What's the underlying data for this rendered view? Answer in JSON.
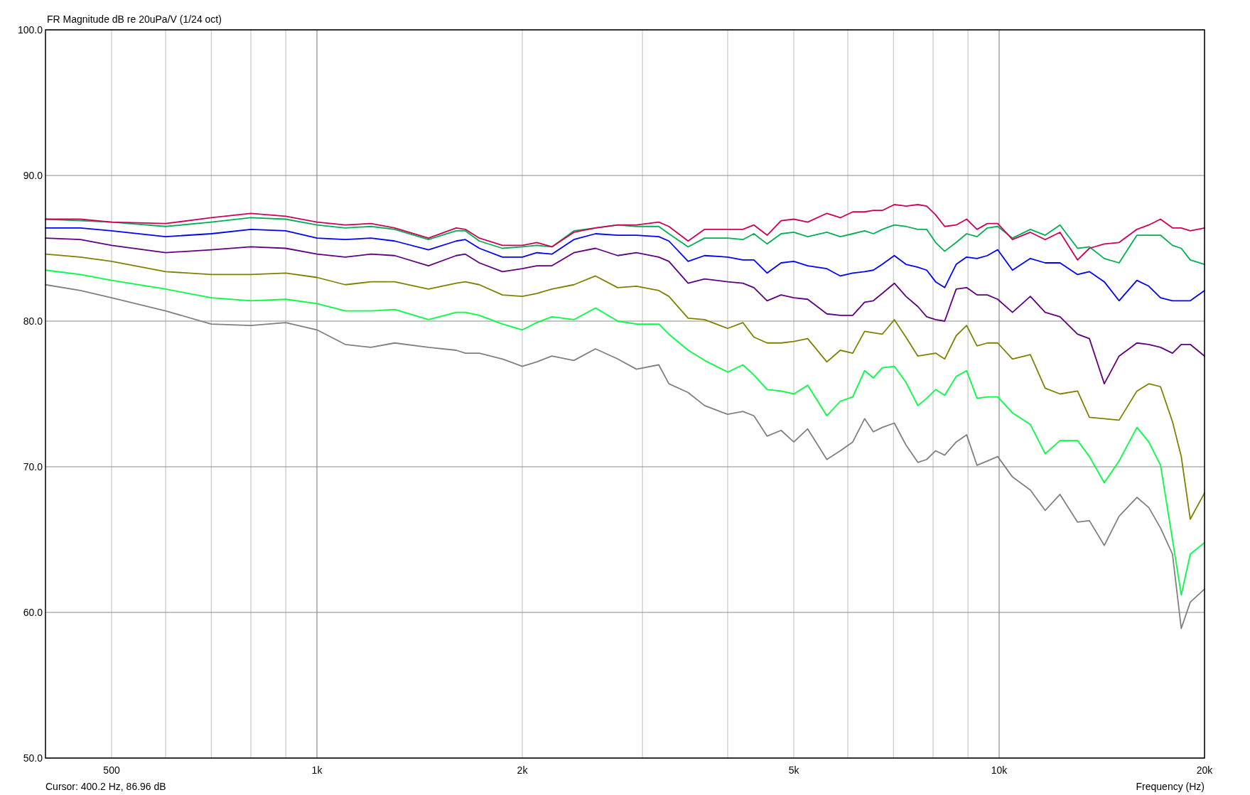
{
  "chart_data": {
    "type": "line",
    "title": "FR Magnitude dB re 20uPa/V (1/24 oct)",
    "xlabel": "Frequency (Hz)",
    "annotations": [
      "Cursor: 400.2 Hz, 86.96 dB"
    ],
    "log": "x",
    "grid": true,
    "marker": "none",
    "line_style": "solid",
    "xlim": [
      400,
      20000
    ],
    "xticks": [
      {
        "value": 500,
        "label": "500"
      },
      {
        "value": 600,
        "label": null
      },
      {
        "value": 700,
        "label": null
      },
      {
        "value": 800,
        "label": null
      },
      {
        "value": 900,
        "label": null
      },
      {
        "value": 1000,
        "label": "1k"
      },
      {
        "value": 2000,
        "label": "2k"
      },
      {
        "value": 3000,
        "label": null
      },
      {
        "value": 4000,
        "label": null
      },
      {
        "value": 5000,
        "label": "5k"
      },
      {
        "value": 6000,
        "label": null
      },
      {
        "value": 7000,
        "label": null
      },
      {
        "value": 8000,
        "label": null
      },
      {
        "value": 9000,
        "label": null
      },
      {
        "value": 10000,
        "label": "10k"
      },
      {
        "value": 20000,
        "label": "20k"
      }
    ],
    "ylim": [
      50,
      100
    ],
    "yticks": [
      {
        "value": 50,
        "label": "50.0"
      },
      {
        "value": 60,
        "label": "60.0"
      },
      {
        "value": 70,
        "label": "70.0"
      },
      {
        "value": 80,
        "label": "80.0"
      },
      {
        "value": 90,
        "label": "90.0"
      },
      {
        "value": 100,
        "label": "100.0"
      }
    ],
    "x": [
      400,
      450,
      500,
      600,
      700,
      800,
      900,
      1000,
      1100,
      1200,
      1300,
      1457,
      1600,
      1650,
      1730,
      1870,
      2000,
      2100,
      2210,
      2380,
      2560,
      2760,
      2940,
      3170,
      3280,
      3500,
      3700,
      4000,
      4210,
      4370,
      4570,
      4790,
      5000,
      5240,
      5590,
      5850,
      6100,
      6350,
      6540,
      6740,
      7020,
      7300,
      7600,
      7830,
      8070,
      8320,
      8650,
      8960,
      9280,
      9610,
      9950,
      10460,
      11110,
      11680,
      12280,
      13030,
      13560,
      14260,
      14990,
      15920,
      16570,
      17240,
      17950,
      18490,
      19060,
      20000
    ],
    "series": [
      {
        "color": "#808080",
        "values": [
          82.5,
          82.1,
          81.6,
          80.7,
          79.8,
          79.7,
          79.9,
          79.4,
          78.4,
          78.2,
          78.5,
          78.2,
          78.0,
          77.8,
          77.8,
          77.4,
          76.9,
          77.2,
          77.6,
          77.3,
          78.1,
          77.4,
          76.7,
          77.0,
          75.7,
          75.1,
          74.2,
          73.6,
          73.8,
          73.5,
          72.1,
          72.5,
          71.7,
          72.6,
          70.5,
          71.1,
          71.7,
          73.3,
          72.4,
          72.7,
          73.0,
          71.5,
          70.3,
          70.5,
          71.1,
          70.8,
          71.7,
          72.2,
          70.1,
          70.4,
          70.7,
          69.3,
          68.4,
          67.0,
          68.1,
          66.2,
          66.3,
          64.6,
          66.6,
          67.9,
          67.2,
          65.8,
          64.0,
          58.9,
          60.7,
          61.6
        ]
      },
      {
        "color": "#00ff40",
        "values": [
          83.5,
          83.2,
          82.8,
          82.2,
          81.6,
          81.4,
          81.5,
          81.2,
          80.7,
          80.7,
          80.8,
          80.1,
          80.6,
          80.6,
          80.4,
          79.8,
          79.4,
          79.9,
          80.3,
          80.1,
          80.9,
          80.0,
          79.8,
          79.8,
          79.1,
          78.0,
          77.3,
          76.5,
          77.0,
          76.3,
          75.3,
          75.2,
          75.0,
          75.6,
          73.5,
          74.5,
          74.8,
          76.6,
          76.1,
          76.8,
          76.9,
          75.8,
          74.2,
          74.7,
          75.3,
          74.9,
          76.2,
          76.6,
          74.7,
          74.8,
          74.8,
          73.7,
          72.9,
          70.9,
          71.8,
          71.8,
          70.7,
          68.9,
          70.4,
          72.7,
          71.7,
          70.1,
          65.0,
          61.2,
          64.0,
          64.8
        ]
      },
      {
        "color": "#808000",
        "values": [
          84.6,
          84.4,
          84.1,
          83.4,
          83.2,
          83.2,
          83.3,
          83.0,
          82.5,
          82.7,
          82.7,
          82.2,
          82.6,
          82.7,
          82.5,
          81.8,
          81.7,
          81.9,
          82.2,
          82.5,
          83.1,
          82.3,
          82.4,
          82.1,
          81.7,
          80.2,
          80.1,
          79.5,
          79.9,
          78.9,
          78.5,
          78.5,
          78.6,
          78.8,
          77.2,
          78.0,
          77.8,
          79.3,
          79.2,
          79.1,
          80.1,
          78.9,
          77.6,
          77.7,
          77.8,
          77.4,
          79.0,
          79.7,
          78.3,
          78.5,
          78.5,
          77.4,
          77.7,
          75.4,
          75.0,
          75.2,
          73.4,
          73.3,
          73.2,
          75.2,
          75.7,
          75.5,
          73.1,
          70.7,
          66.4,
          68.2
        ]
      },
      {
        "color": "#600080",
        "values": [
          85.7,
          85.6,
          85.2,
          84.7,
          84.9,
          85.1,
          85.0,
          84.6,
          84.4,
          84.6,
          84.5,
          83.8,
          84.5,
          84.6,
          84.0,
          83.4,
          83.6,
          83.8,
          83.8,
          84.7,
          85.0,
          84.5,
          84.7,
          84.4,
          84.1,
          82.6,
          82.9,
          82.7,
          82.6,
          82.3,
          81.4,
          81.8,
          81.6,
          81.5,
          80.5,
          80.4,
          80.4,
          81.3,
          81.4,
          81.9,
          82.6,
          81.7,
          81.0,
          80.3,
          80.1,
          80.0,
          82.2,
          82.3,
          81.8,
          81.8,
          81.5,
          80.6,
          81.7,
          80.6,
          80.3,
          79.1,
          78.8,
          75.7,
          77.6,
          78.5,
          78.4,
          78.2,
          77.8,
          78.4,
          78.4,
          77.6
        ]
      },
      {
        "color": "#0000ff",
        "values": [
          86.4,
          86.4,
          86.2,
          85.8,
          86.0,
          86.3,
          86.2,
          85.7,
          85.6,
          85.7,
          85.5,
          84.9,
          85.5,
          85.6,
          85.0,
          84.4,
          84.4,
          84.7,
          84.6,
          85.6,
          86.0,
          85.9,
          85.9,
          85.8,
          85.5,
          84.1,
          84.5,
          84.4,
          84.2,
          84.2,
          83.3,
          84.0,
          84.1,
          83.8,
          83.6,
          83.1,
          83.3,
          83.4,
          83.5,
          83.9,
          84.5,
          83.9,
          83.7,
          83.5,
          82.7,
          82.3,
          83.9,
          84.4,
          84.3,
          84.5,
          84.9,
          83.5,
          84.3,
          84.0,
          84.0,
          83.2,
          83.4,
          82.7,
          81.4,
          82.8,
          82.4,
          81.6,
          81.4,
          81.4,
          81.4,
          82.1
        ]
      },
      {
        "color": "#00b050",
        "values": [
          87.0,
          86.9,
          86.8,
          86.5,
          86.8,
          87.1,
          87.0,
          86.6,
          86.4,
          86.5,
          86.3,
          85.6,
          86.2,
          86.2,
          85.5,
          85.0,
          85.1,
          85.2,
          85.1,
          86.2,
          86.4,
          86.6,
          86.5,
          86.5,
          86.0,
          85.1,
          85.7,
          85.7,
          85.6,
          86.0,
          85.3,
          86.0,
          86.1,
          85.8,
          86.1,
          85.8,
          86.0,
          86.2,
          86.0,
          86.3,
          86.6,
          86.5,
          86.3,
          86.3,
          85.4,
          84.8,
          85.4,
          86.0,
          85.8,
          86.4,
          86.5,
          85.7,
          86.3,
          85.9,
          86.6,
          85.0,
          85.1,
          84.3,
          84.0,
          85.9,
          85.9,
          85.9,
          85.2,
          85.0,
          84.2,
          83.9
        ]
      },
      {
        "color": "#d0005a",
        "values": [
          87.0,
          87.0,
          86.8,
          86.7,
          87.1,
          87.4,
          87.2,
          86.8,
          86.6,
          86.7,
          86.4,
          85.7,
          86.4,
          86.3,
          85.7,
          85.2,
          85.2,
          85.4,
          85.1,
          86.1,
          86.4,
          86.6,
          86.6,
          86.8,
          86.5,
          85.5,
          86.3,
          86.3,
          86.3,
          86.6,
          85.9,
          86.9,
          87.0,
          86.8,
          87.4,
          87.1,
          87.5,
          87.5,
          87.6,
          87.6,
          88.0,
          87.9,
          88.0,
          87.9,
          87.3,
          86.5,
          86.6,
          87.0,
          86.3,
          86.7,
          86.7,
          85.6,
          86.1,
          85.6,
          86.1,
          84.2,
          85.0,
          85.3,
          85.4,
          86.3,
          86.6,
          87.0,
          86.4,
          86.4,
          86.2,
          86.4
        ]
      }
    ]
  }
}
